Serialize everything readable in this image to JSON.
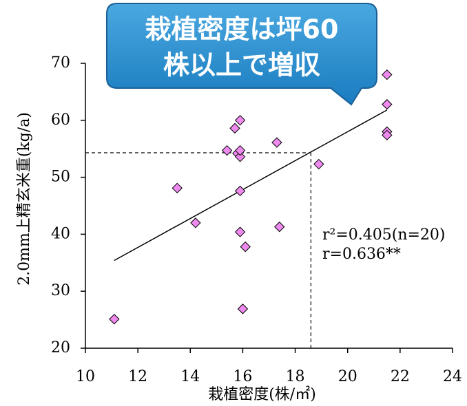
{
  "chart_data": {
    "type": "scatter",
    "callout": [
      "栽植密度は坪60",
      "株以上で増収"
    ],
    "x_label": "栽植密度(株/㎡)",
    "y_label": "2.0mm上精玄米重(kg/a)",
    "annotations": [
      "r²=0.405(n=20)",
      "r=0.636**"
    ],
    "x": [
      11.1,
      13.5,
      14.2,
      15.4,
      15.8,
      15.9,
      15.9,
      15.7,
      15.9,
      15.9,
      15.9,
      16.1,
      16.0,
      17.3,
      17.4,
      18.9,
      21.5,
      21.5,
      21.5,
      21.5
    ],
    "values": [
      25.1,
      48.1,
      42.0,
      54.7,
      54.2,
      53.6,
      54.7,
      58.6,
      60.0,
      47.6,
      40.4,
      37.8,
      26.9,
      56.1,
      41.3,
      52.3,
      68.0,
      62.8,
      58.0,
      57.4
    ],
    "color": "#ee8aee",
    "trendline": {
      "x": [
        11.1,
        21.5
      ],
      "y": [
        35.4,
        61.8
      ]
    },
    "reference": {
      "x": 18.6,
      "y": 54.3
    },
    "xlim": [
      10,
      24
    ],
    "ylim": [
      20,
      70
    ],
    "xticks": [
      10,
      12,
      14,
      16,
      18,
      20,
      22,
      24
    ],
    "yticks": [
      20,
      30,
      40,
      50,
      60,
      70
    ]
  }
}
